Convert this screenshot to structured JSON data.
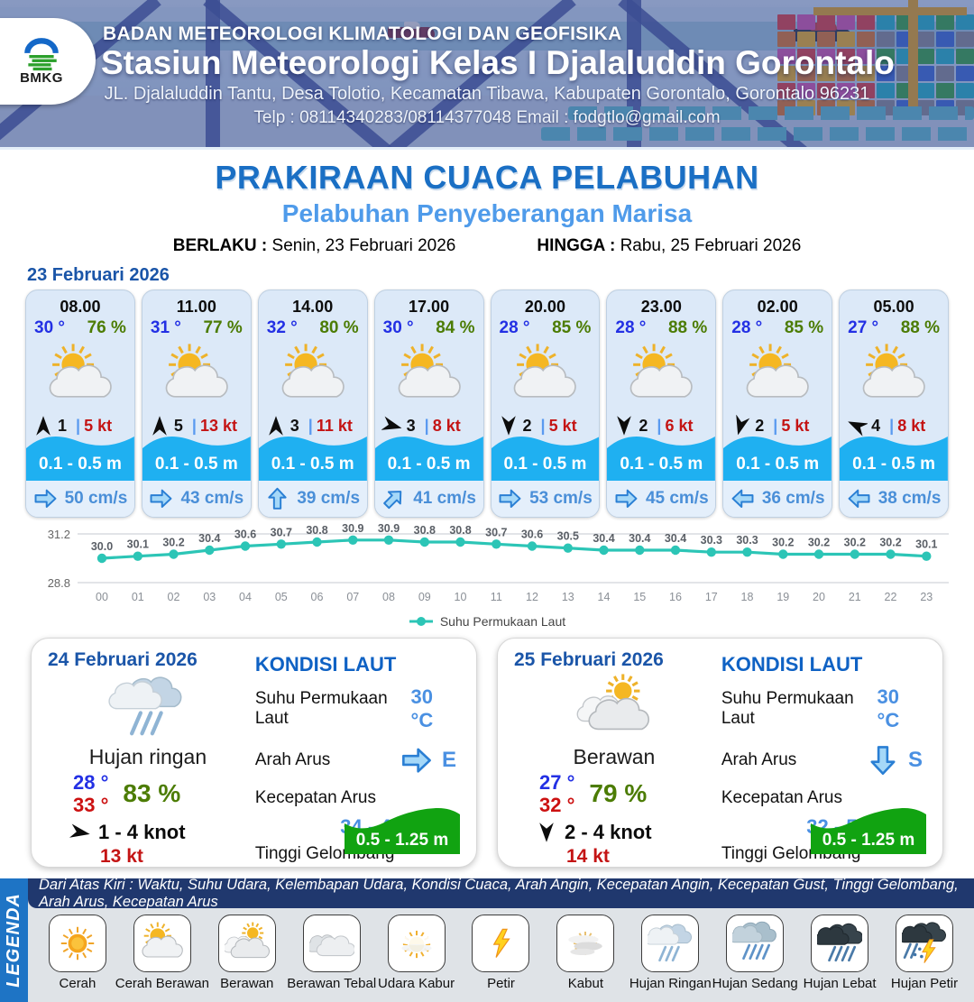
{
  "header": {
    "org": "BADAN METEOROLOGI KLIMATOLOGI DAN GEOFISIKA",
    "station": "Stasiun Meteorologi Kelas I Djalaluddin Gorontalo",
    "address": "JL. Djalaluddin Tantu, Desa Tolotio, Kecamatan Tibawa, Kabupaten Gorontalo, Gorontalo 96231",
    "contact": "Telp : 08114340283/08114377048 Email : fodgtlo@gmail.com",
    "logo_text": "BMKG"
  },
  "title": {
    "main": "PRAKIRAAN CUACA PELABUHAN",
    "sub": "Pelabuhan Penyeberangan Marisa"
  },
  "validity": {
    "berlaku_label": "BERLAKU :",
    "berlaku_value": "Senin, 23 Februari 2026",
    "hingga_label": "HINGGA :",
    "hingga_value": "Rabu, 25 Februari 2026"
  },
  "forecast_date": "23 Februari 2026",
  "hourly": [
    {
      "time": "08.00",
      "temp": "30 °",
      "humidity": "76 %",
      "weather": "cerah-berawan",
      "wind_deg": 0,
      "wind_value": "1",
      "gust": "5 kt",
      "wave": "0.1 - 0.5 m",
      "current_deg": 0,
      "current": "50 cm/s"
    },
    {
      "time": "11.00",
      "temp": "31 °",
      "humidity": "77 %",
      "weather": "cerah-berawan",
      "wind_deg": 0,
      "wind_value": "5",
      "gust": "13 kt",
      "wave": "0.1 - 0.5 m",
      "current_deg": 0,
      "current": "43 cm/s"
    },
    {
      "time": "14.00",
      "temp": "32 °",
      "humidity": "80 %",
      "weather": "cerah-berawan",
      "wind_deg": 0,
      "wind_value": "3",
      "gust": "11 kt",
      "wave": "0.1 - 0.5 m",
      "current_deg": -90,
      "current": "39 cm/s"
    },
    {
      "time": "17.00",
      "temp": "30 °",
      "humidity": "84 %",
      "weather": "cerah-berawan",
      "wind_deg": 105,
      "wind_value": "3",
      "gust": "8 kt",
      "wave": "0.1 - 0.5 m",
      "current_deg": -45,
      "current": "41 cm/s"
    },
    {
      "time": "20.00",
      "temp": "28 °",
      "humidity": "85 %",
      "weather": "cerah-berawan",
      "wind_deg": 180,
      "wind_value": "2",
      "gust": "5 kt",
      "wave": "0.1 - 0.5 m",
      "current_deg": 0,
      "current": "53 cm/s"
    },
    {
      "time": "23.00",
      "temp": "28 °",
      "humidity": "88 %",
      "weather": "cerah-berawan",
      "wind_deg": 180,
      "wind_value": "2",
      "gust": "6 kt",
      "wave": "0.1 - 0.5 m",
      "current_deg": 0,
      "current": "45 cm/s"
    },
    {
      "time": "02.00",
      "temp": "28 °",
      "humidity": "85 %",
      "weather": "cerah-berawan",
      "wind_deg": 195,
      "wind_value": "2",
      "gust": "5 kt",
      "wave": "0.1 - 0.5 m",
      "current_deg": 180,
      "current": "36 cm/s"
    },
    {
      "time": "05.00",
      "temp": "27 °",
      "humidity": "88 %",
      "weather": "cerah-berawan",
      "wind_deg": 295,
      "wind_value": "4",
      "gust": "8 kt",
      "wave": "0.1 - 0.5 m",
      "current_deg": 180,
      "current": "38 cm/s"
    }
  ],
  "chart_data": {
    "type": "line",
    "x": [
      "00",
      "01",
      "02",
      "03",
      "04",
      "05",
      "06",
      "07",
      "08",
      "09",
      "10",
      "11",
      "12",
      "13",
      "14",
      "15",
      "16",
      "17",
      "18",
      "19",
      "20",
      "21",
      "22",
      "23"
    ],
    "series": [
      {
        "name": "Suhu Permukaan Laut",
        "color": "#2cc5b6",
        "values": [
          30.0,
          30.1,
          30.2,
          30.4,
          30.6,
          30.7,
          30.8,
          30.9,
          30.9,
          30.8,
          30.8,
          30.7,
          30.6,
          30.5,
          30.4,
          30.4,
          30.4,
          30.3,
          30.3,
          30.2,
          30.2,
          30.2,
          30.2,
          30.1
        ]
      }
    ],
    "ylim": [
      28.8,
      31.2
    ],
    "yticks": [
      "31.2",
      "28.8"
    ],
    "grid": true,
    "legend_position": "bottom"
  },
  "daily": [
    {
      "date": "24 Februari 2026",
      "icon": "hujan-ringan",
      "condition": "Hujan ringan",
      "temp_min": "28 °",
      "temp_max": "33 °",
      "humidity": "83 %",
      "wind_deg": 100,
      "wind": "1  - 4 knot",
      "gust": "13 kt",
      "sea": {
        "title": "KONDISI LAUT",
        "sst_label": "Suhu Permukaan Laut",
        "sst_value": "30 °C",
        "current_dir_label": "Arah Arus",
        "current_dir_deg": 0,
        "current_dir": "E",
        "current_speed_label": "Kecepatan Arus",
        "current_speed": "34  - 49 cm/s",
        "wave_label": "Tinggi Gelombang",
        "wave_height": "0.5 - 1.25 m"
      }
    },
    {
      "date": "25 Februari 2026",
      "icon": "berawan",
      "condition": "Berawan",
      "temp_min": "27 °",
      "temp_max": "32 °",
      "humidity": "79 %",
      "wind_deg": 180,
      "wind": "2  - 4 knot",
      "gust": "14 kt",
      "sea": {
        "title": "KONDISI LAUT",
        "sst_label": "Suhu Permukaan Laut",
        "sst_value": "30 °C",
        "current_dir_label": "Arah Arus",
        "current_dir_deg": 90,
        "current_dir": "S",
        "current_speed_label": "Kecepatan Arus",
        "current_speed": "32  - 52 cm/s",
        "wave_label": "Tinggi Gelombang",
        "wave_height": "0.5 - 1.25 m"
      }
    }
  ],
  "legend": {
    "title": "LEGENDA",
    "note": "Dari Atas Kiri : Waktu, Suhu Udara, Kelembapan Udara, Kondisi Cuaca, Arah Angin, Kecepatan Angin, Kecepatan Gust, Tinggi Gelombang, Arah Arus, Kecepatan Arus",
    "items": [
      {
        "icon": "cerah",
        "label": "Cerah"
      },
      {
        "icon": "cerah-berawan",
        "label": "Cerah Berawan"
      },
      {
        "icon": "berawan",
        "label": "Berawan"
      },
      {
        "icon": "berawan-tebal",
        "label": "Berawan Tebal"
      },
      {
        "icon": "udara-kabur",
        "label": "Udara Kabur"
      },
      {
        "icon": "petir",
        "label": "Petir"
      },
      {
        "icon": "kabut",
        "label": "Kabut"
      },
      {
        "icon": "hujan-ringan",
        "label": "Hujan Ringan"
      },
      {
        "icon": "hujan-sedang",
        "label": "Hujan Sedang"
      },
      {
        "icon": "hujan-lebat",
        "label": "Hujan Lebat"
      },
      {
        "icon": "hujan-petir",
        "label": "Hujan Petir"
      }
    ]
  },
  "colors": {
    "title_blue": "#1a6fc4",
    "subtitle_blue": "#4f9bea",
    "date_blue": "#1a55a8",
    "temp_blue": "#2330e4",
    "temp_red": "#cc1111",
    "humidity_green": "#4c7c04",
    "gust_red": "#c41414",
    "wave_band_blue": "#1fb0f1",
    "current_text_blue": "#4a8fd8",
    "sea_value_blue": "#4a90e2",
    "wave_green": "#11a311",
    "chart_teal": "#2cc5b6",
    "legend_stripe_blue": "#1e74c5",
    "legend_bar_navy": "#20386e"
  }
}
